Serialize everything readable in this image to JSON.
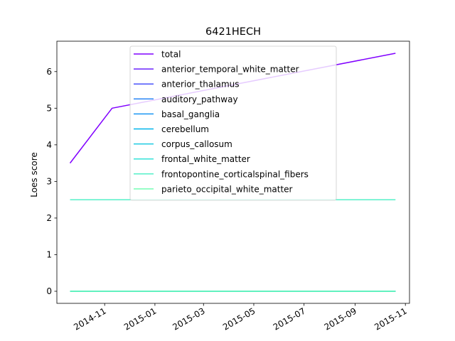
{
  "chart_data": {
    "type": "line",
    "title": "6421HECH",
    "xlabel": "",
    "ylabel": "Loes score",
    "x": [
      "2014-09-20",
      "2014-11-10",
      "2015-10-20"
    ],
    "xlim": [
      "2014-09-04",
      "2015-11-06"
    ],
    "ylim": [
      -0.33,
      6.83
    ],
    "x_tick_labels": [
      "2014-11",
      "2015-01",
      "2015-03",
      "2015-05",
      "2015-07",
      "2015-09",
      "2015-11"
    ],
    "x_tick_values": [
      "2014-11-01",
      "2015-01-01",
      "2015-03-01",
      "2015-05-01",
      "2015-07-01",
      "2015-09-01",
      "2015-11-01"
    ],
    "y_tick_labels": [
      "0",
      "1",
      "2",
      "3",
      "4",
      "5",
      "6"
    ],
    "y_tick_values": [
      0,
      1,
      2,
      3,
      4,
      5,
      6
    ],
    "grid": false,
    "legend_position": "upper center",
    "series": [
      {
        "name": "total",
        "color": "#8000ff",
        "values": [
          3.5,
          5.0,
          6.5
        ]
      },
      {
        "name": "anterior_temporal_white_matter",
        "color": "#6a22fe",
        "values": [
          0,
          0,
          0
        ]
      },
      {
        "name": "anterior_thalamus",
        "color": "#4a53fb",
        "values": [
          0,
          0,
          0
        ]
      },
      {
        "name": "auditory_pathway",
        "color": "#2a85f5",
        "values": [
          0,
          0,
          0
        ]
      },
      {
        "name": "basal_ganglia",
        "color": "#1996f3",
        "values": [
          0,
          0,
          0
        ]
      },
      {
        "name": "cerebellum",
        "color": "#00b5eb",
        "values": [
          0,
          0,
          0
        ]
      },
      {
        "name": "corpus_callosum",
        "color": "#1ecbe1",
        "values": [
          0,
          0,
          0
        ]
      },
      {
        "name": "frontal_white_matter",
        "color": "#34e2d8",
        "values": [
          0,
          0,
          0
        ]
      },
      {
        "name": "frontopontine_corticalspinal_fibers",
        "color": "#54f0c8",
        "values": [
          2.5,
          2.5,
          2.5
        ]
      },
      {
        "name": "parieto_occipital_white_matter",
        "color": "#74feb4",
        "values": [
          0,
          0,
          0
        ]
      }
    ]
  }
}
